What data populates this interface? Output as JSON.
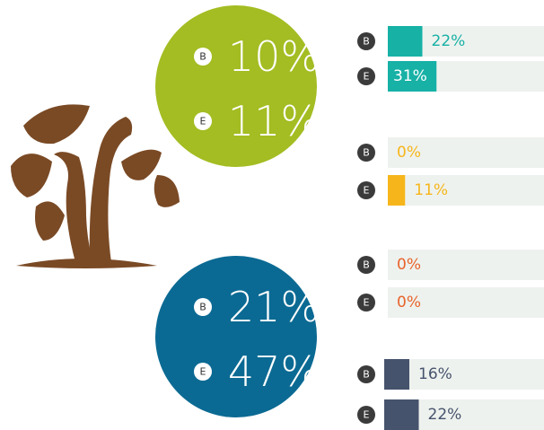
{
  "circles": [
    {
      "color": "#a3bd22",
      "items": [
        {
          "marker": "B",
          "value": "10%"
        },
        {
          "marker": "E",
          "value": "11%"
        }
      ]
    },
    {
      "color": "#0b6a93",
      "items": [
        {
          "marker": "B",
          "value": "21%"
        },
        {
          "marker": "E",
          "value": "47%"
        }
      ]
    }
  ],
  "bars": [
    {
      "color": "#17b1a6",
      "markers": [
        "B",
        "E"
      ],
      "values": [
        22,
        31
      ],
      "value_labels": [
        "22%",
        "31%"
      ]
    },
    {
      "color": "#f6b61b",
      "markers": [
        "B",
        "E"
      ],
      "values": [
        0,
        11
      ],
      "value_labels": [
        "0%",
        "11%"
      ]
    },
    {
      "color": "#e8632b",
      "markers": [
        "B",
        "E"
      ],
      "values": [
        0,
        0
      ],
      "value_labels": [
        "0%",
        "0%"
      ]
    },
    {
      "color": "#46536d",
      "markers": [
        "B",
        "E"
      ],
      "values": [
        16,
        22
      ],
      "value_labels": [
        "16%",
        "22%"
      ]
    }
  ]
}
